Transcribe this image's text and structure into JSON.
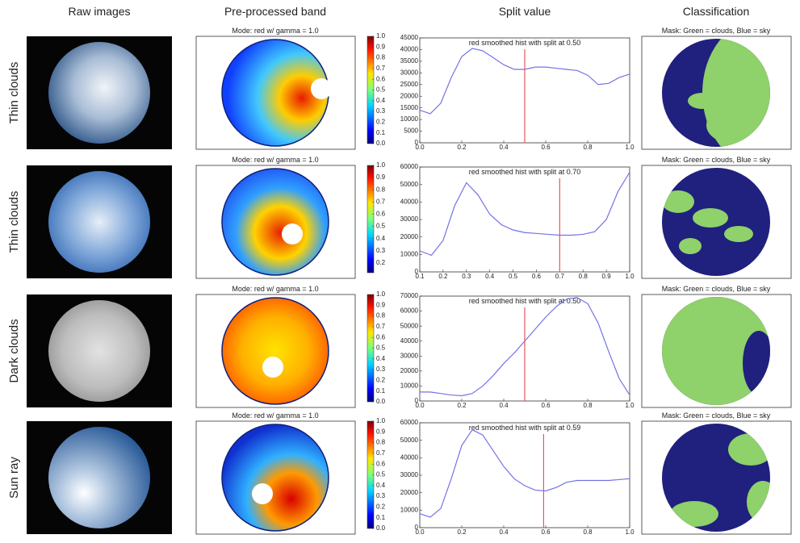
{
  "headers": [
    "Raw images",
    "Pre-processed band",
    "Split value",
    "Classification"
  ],
  "rows": [
    {
      "label": "Thin clouds",
      "band": {
        "title": "Mode: red w/ gamma = 1.0",
        "clim": [
          0,
          1
        ],
        "cticks": [
          {
            "value": 0,
            "label": "0.0"
          },
          0.1,
          0.2,
          0.3,
          0.4,
          0.5,
          0.6,
          0.7,
          0.8,
          0.9,
          {
            "value": 1,
            "label": "1.0"
          }
        ]
      },
      "mask_title": "Mask: Green = clouds, Blue = sky"
    },
    {
      "label": "Thin clouds",
      "band": {
        "title": "Mode: red w/ gamma = 1.0",
        "clim": [
          0.12,
          1
        ],
        "cticks": [
          0.2,
          0.3,
          0.4,
          0.5,
          0.6,
          0.7,
          0.8,
          0.9,
          {
            "value": 1,
            "label": "1.0"
          }
        ]
      },
      "mask_title": "Mask: Green = clouds, Blue = sky"
    },
    {
      "label": "Dark clouds",
      "band": {
        "title": "Mode: red w/ gamma = 1.0",
        "clim": [
          0,
          1
        ],
        "cticks": [
          {
            "value": 0,
            "label": "0.0"
          },
          0.1,
          0.2,
          0.3,
          0.4,
          0.5,
          0.6,
          0.7,
          0.8,
          0.9,
          {
            "value": 1,
            "label": "1.0"
          }
        ]
      },
      "mask_title": "Mask: Green = clouds, Blue = sky"
    },
    {
      "label": "Sun ray",
      "band": {
        "title": "Mode: red w/ gamma = 1.0",
        "clim": [
          0,
          1
        ],
        "cticks": [
          {
            "value": 0,
            "label": "0.0"
          },
          0.1,
          0.2,
          0.3,
          0.4,
          0.5,
          0.6,
          0.7,
          0.8,
          0.9,
          {
            "value": 1,
            "label": "1.0"
          }
        ]
      },
      "mask_title": "Mask: Green = clouds, Blue = sky"
    }
  ],
  "chart_data": [
    {
      "type": "line",
      "title": "red smoothed hist with split at 0.50",
      "color": "#7373e6",
      "split": 0.5,
      "split_color": "#e8575a",
      "x": [
        0,
        0.05,
        0.1,
        0.15,
        0.2,
        0.25,
        0.3,
        0.35,
        0.4,
        0.45,
        0.5,
        0.55,
        0.6,
        0.65,
        0.7,
        0.75,
        0.8,
        0.85,
        0.9,
        0.95,
        1
      ],
      "values": [
        14000,
        12500,
        17000,
        28000,
        37000,
        40500,
        39500,
        36500,
        33500,
        31500,
        31500,
        32500,
        32500,
        32000,
        31500,
        31000,
        29000,
        25000,
        25500,
        28000,
        29500
      ],
      "xlim": [
        0,
        1
      ],
      "xticks": [
        {
          "value": 0,
          "label": "0.0"
        },
        0.2,
        0.4,
        0.6,
        0.8,
        {
          "value": 1,
          "label": "1.0"
        }
      ],
      "ylim": [
        0,
        45000
      ],
      "yticks": [
        0,
        5000,
        10000,
        15000,
        20000,
        25000,
        30000,
        35000,
        40000,
        45000
      ]
    },
    {
      "type": "line",
      "title": "red smoothed hist with split at 0.70",
      "color": "#7373e6",
      "split": 0.7,
      "split_color": "#e8575a",
      "x": [
        0.1,
        0.15,
        0.2,
        0.25,
        0.3,
        0.35,
        0.4,
        0.45,
        0.5,
        0.55,
        0.6,
        0.65,
        0.7,
        0.75,
        0.8,
        0.85,
        0.9,
        0.95,
        1
      ],
      "values": [
        12000,
        9500,
        18000,
        38000,
        51000,
        44000,
        33000,
        27000,
        24000,
        22500,
        22000,
        21500,
        21000,
        21000,
        21500,
        23000,
        30000,
        46000,
        57000
      ],
      "xlim": [
        0.1,
        1
      ],
      "xticks": [
        0.1,
        0.2,
        0.3,
        0.4,
        0.5,
        0.6,
        0.7,
        0.8,
        0.9,
        {
          "value": 1,
          "label": "1.0"
        }
      ],
      "ylim": [
        0,
        60000
      ],
      "yticks": [
        0,
        10000,
        20000,
        30000,
        40000,
        50000,
        60000
      ]
    },
    {
      "type": "line",
      "title": "red smoothed hist with split at 0.50",
      "color": "#7373e6",
      "split": 0.5,
      "split_color": "#e8575a",
      "x": [
        0,
        0.05,
        0.1,
        0.15,
        0.2,
        0.25,
        0.3,
        0.35,
        0.4,
        0.45,
        0.5,
        0.55,
        0.6,
        0.65,
        0.7,
        0.75,
        0.8,
        0.85,
        0.9,
        0.95,
        1
      ],
      "values": [
        6000,
        6000,
        5000,
        4000,
        3500,
        5000,
        10000,
        17000,
        25000,
        32000,
        40000,
        48000,
        56000,
        63000,
        68000,
        69000,
        65000,
        52000,
        33000,
        15000,
        4000
      ],
      "xlim": [
        0,
        1
      ],
      "xticks": [
        {
          "value": 0,
          "label": "0.0"
        },
        0.2,
        0.4,
        0.6,
        0.8,
        {
          "value": 1,
          "label": "1.0"
        }
      ],
      "ylim": [
        0,
        70000
      ],
      "yticks": [
        0,
        10000,
        20000,
        30000,
        40000,
        50000,
        60000,
        70000
      ]
    },
    {
      "type": "line",
      "title": "red smoothed hist with split at 0.59",
      "color": "#7373e6",
      "split": 0.59,
      "split_color": "#e8575a",
      "x": [
        0,
        0.05,
        0.1,
        0.15,
        0.2,
        0.25,
        0.3,
        0.35,
        0.4,
        0.45,
        0.5,
        0.55,
        0.6,
        0.65,
        0.7,
        0.75,
        0.8,
        0.85,
        0.9,
        0.95,
        1
      ],
      "values": [
        8000,
        6000,
        11000,
        28000,
        47000,
        56000,
        53000,
        44000,
        35000,
        28000,
        24000,
        21500,
        21000,
        23000,
        26000,
        27000,
        27000,
        27000,
        27000,
        27500,
        28000
      ],
      "xlim": [
        0,
        1
      ],
      "xticks": [
        {
          "value": 0,
          "label": "0.0"
        },
        0.2,
        0.4,
        0.6,
        0.8,
        {
          "value": 1,
          "label": "1.0"
        }
      ],
      "ylim": [
        0,
        60000
      ],
      "yticks": [
        0,
        10000,
        20000,
        30000,
        40000,
        50000,
        60000
      ]
    }
  ]
}
